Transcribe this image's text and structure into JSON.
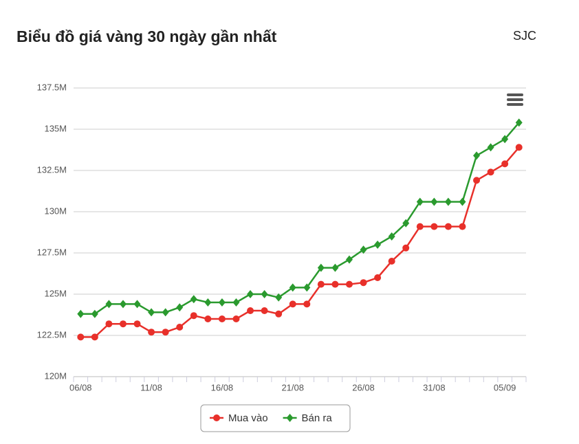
{
  "chart_data": {
    "type": "line",
    "title": "Biểu đồ giá vàng 30 ngày gần nhất",
    "subtitle": "SJC",
    "categories": [
      "06/08",
      null,
      null,
      null,
      null,
      "11/08",
      null,
      null,
      null,
      null,
      "16/08",
      null,
      null,
      null,
      null,
      "21/08",
      null,
      null,
      null,
      null,
      "26/08",
      null,
      null,
      null,
      null,
      "31/08",
      null,
      null,
      null,
      null,
      "05/09",
      null
    ],
    "series": [
      {
        "name": "Mua vào",
        "color": "#e8302a",
        "values": [
          122.4,
          122.4,
          123.2,
          123.2,
          123.2,
          122.7,
          122.7,
          123.0,
          123.7,
          123.5,
          123.5,
          123.5,
          124.0,
          124.0,
          123.8,
          124.4,
          124.4,
          125.6,
          125.6,
          125.6,
          125.7,
          126.0,
          127.0,
          127.8,
          129.1,
          129.1,
          129.1,
          129.1,
          131.9,
          132.4,
          132.9,
          133.9
        ]
      },
      {
        "name": "Bán ra",
        "color": "#2a9a2e",
        "values": [
          123.8,
          123.8,
          124.4,
          124.4,
          124.4,
          123.9,
          123.9,
          124.2,
          124.7,
          124.5,
          124.5,
          124.5,
          125.0,
          125.0,
          124.8,
          125.4,
          125.4,
          126.6,
          126.6,
          127.1,
          127.7,
          128.0,
          128.5,
          129.3,
          130.6,
          130.6,
          130.6,
          130.6,
          133.4,
          133.9,
          134.4,
          135.4
        ]
      }
    ],
    "ylim": [
      120,
      137.5
    ],
    "yticks": [
      {
        "value": 120,
        "label": "120M"
      },
      {
        "value": 122.5,
        "label": "122.5M"
      },
      {
        "value": 125,
        "label": "125M"
      },
      {
        "value": 127.5,
        "label": "127.5M"
      },
      {
        "value": 130,
        "label": "130M"
      },
      {
        "value": 132.5,
        "label": "132.5M"
      },
      {
        "value": 135,
        "label": "135M"
      },
      {
        "value": 137.5,
        "label": "137.5M"
      }
    ],
    "grid": true,
    "legend": "bottom"
  }
}
